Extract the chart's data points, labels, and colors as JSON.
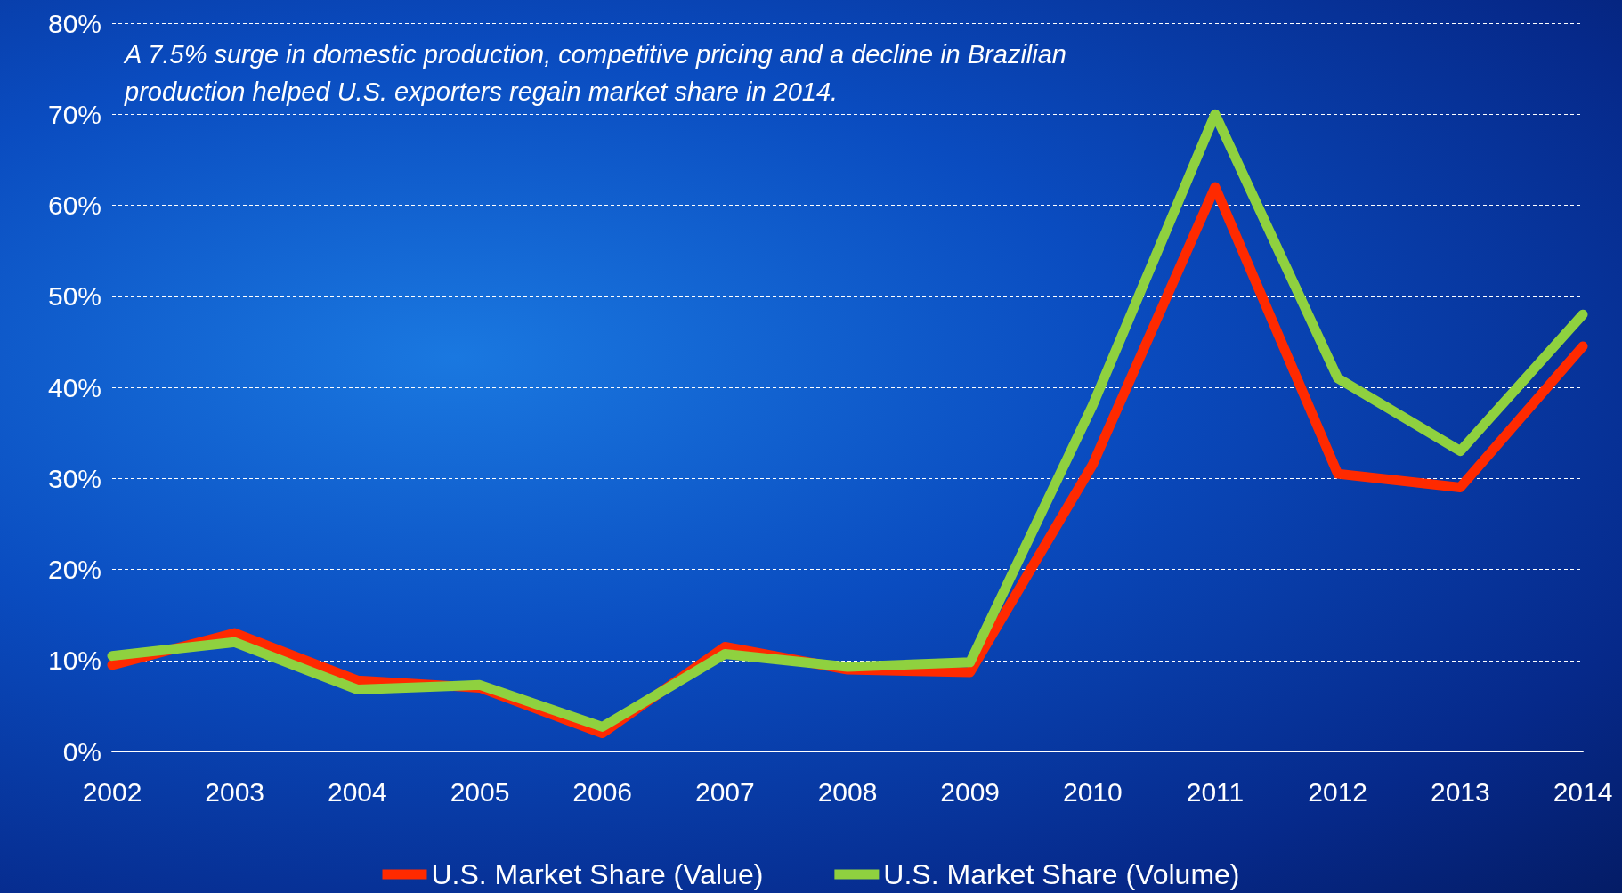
{
  "chart_data": {
    "type": "line",
    "categories": [
      "2002",
      "2003",
      "2004",
      "2005",
      "2006",
      "2007",
      "2008",
      "2009",
      "2010",
      "2011",
      "2012",
      "2013",
      "2014"
    ],
    "series": [
      {
        "name": "U.S. Market Share (Value)",
        "color": "#ff2a00",
        "values": [
          9.5,
          13,
          7.8,
          7,
          2,
          11.5,
          9,
          8.7,
          31.5,
          62,
          30.5,
          29,
          44.5
        ]
      },
      {
        "name": "U.S. Market Share (Volume)",
        "color": "#8fd13f",
        "values": [
          10.5,
          12,
          6.8,
          7.3,
          2.7,
          10.7,
          9.3,
          9.8,
          38,
          70,
          41,
          33,
          48
        ]
      }
    ],
    "ylim": [
      0,
      80
    ],
    "yticks": [
      {
        "value": 0,
        "label": "0%"
      },
      {
        "value": 10,
        "label": "10%"
      },
      {
        "value": 20,
        "label": "20%"
      },
      {
        "value": 30,
        "label": "30%"
      },
      {
        "value": 40,
        "label": "40%"
      },
      {
        "value": 50,
        "label": "50%"
      },
      {
        "value": 60,
        "label": "60%"
      },
      {
        "value": 70,
        "label": "70%"
      },
      {
        "value": 80,
        "label": "80%"
      }
    ],
    "grid": "y",
    "legend": "bottom",
    "marker": "none",
    "line_style": "solid",
    "annotations": [
      "A 7.5% surge in domestic production, competitive pricing and a decline in Brazilian production helped U.S. exporters regain market share in 2014."
    ]
  }
}
